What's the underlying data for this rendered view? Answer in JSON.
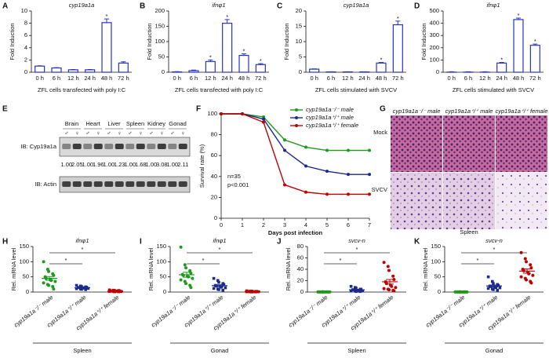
{
  "chart_data": [
    {
      "type": "bar",
      "panel": "A",
      "title": "cyp19a1a",
      "ylabel": "Fold Induction",
      "xlabel": "ZFL cells transfected with poly I:C",
      "color": "#2632c8",
      "categories": [
        "0 h",
        "6 h",
        "12 h",
        "24 h",
        "48 h",
        "72 h"
      ],
      "values": [
        1,
        0.7,
        0.4,
        0.4,
        8.1,
        1.5
      ],
      "errors": [
        0.05,
        0.05,
        0.05,
        0.05,
        0.6,
        0.2
      ],
      "significant": [
        false,
        false,
        false,
        false,
        true,
        false
      ],
      "sig_label": "*",
      "ylim": [
        0,
        10
      ],
      "yticks": [
        0,
        2,
        4,
        6,
        8,
        10
      ]
    },
    {
      "type": "bar",
      "panel": "B",
      "title": "ifnφ1",
      "ylabel": "Fold Induction",
      "xlabel": "ZFL cells transfected with poly I:C",
      "color": "#2632c8",
      "categories": [
        "0 h",
        "6 h",
        "12 h",
        "24 h",
        "48 h",
        "72 h"
      ],
      "values": [
        1,
        5,
        35,
        160,
        55,
        25
      ],
      "errors": [
        1,
        2,
        5,
        12,
        5,
        3
      ],
      "significant": [
        false,
        false,
        true,
        true,
        true,
        true
      ],
      "sig_label": "*",
      "ylim": [
        0,
        200
      ],
      "yticks": [
        0,
        50,
        100,
        150,
        200
      ]
    },
    {
      "type": "bar",
      "panel": "C",
      "title": "cyp19a1a",
      "ylabel": "Fold Induction",
      "xlabel": "ZFL cells stimulated with SVCV",
      "color": "#2632c8",
      "categories": [
        "0 h",
        "6 h",
        "12 h",
        "24 h",
        "48 h",
        "72 h"
      ],
      "values": [
        1,
        0.1,
        0.1,
        0.1,
        3,
        15.5
      ],
      "errors": [
        0.1,
        0.05,
        0.05,
        0.05,
        0.2,
        1.2
      ],
      "significant": [
        false,
        false,
        false,
        false,
        true,
        true
      ],
      "sig_label": "*",
      "ylim": [
        0,
        20
      ],
      "yticks": [
        0,
        5,
        10,
        15,
        20
      ]
    },
    {
      "type": "bar",
      "panel": "D",
      "title": "ifnφ1",
      "ylabel": "Fold Induction",
      "xlabel": "ZFL cells stimulated with SVCV",
      "color": "#2632c8",
      "categories": [
        "0 h",
        "6 h",
        "12 h",
        "24 h",
        "48 h",
        "72 h"
      ],
      "values": [
        1,
        1,
        1,
        75,
        430,
        220
      ],
      "errors": [
        3,
        3,
        3,
        5,
        12,
        10
      ],
      "significant": [
        false,
        false,
        false,
        true,
        true,
        true
      ],
      "sig_label": "*",
      "ylim": [
        0,
        500
      ],
      "yticks": [
        0,
        100,
        200,
        300,
        400,
        500
      ]
    },
    {
      "type": "line",
      "panel": "F",
      "ylabel": "Survival rate (%)",
      "xlabel": "Days post infection",
      "annotations": [
        "n=35",
        "p<0.001"
      ],
      "x": [
        0,
        1,
        2,
        3,
        4,
        5,
        6,
        7
      ],
      "xlim": [
        0,
        7
      ],
      "xticks": [
        0,
        1,
        2,
        3,
        4,
        5,
        6,
        7
      ],
      "ylim": [
        0,
        100
      ],
      "yticks": [
        0,
        20,
        40,
        60,
        80,
        100
      ],
      "series": [
        {
          "name": "cyp19a1a⁻/⁻ male",
          "color": "#1e9a1e",
          "values": [
            100,
            100,
            97,
            75,
            68,
            65,
            65,
            65
          ]
        },
        {
          "name": "cyp19a1a⁺/⁺ male",
          "color": "#1c2a8c",
          "values": [
            100,
            100,
            95,
            65,
            50,
            45,
            42,
            42
          ]
        },
        {
          "name": "cyp19a1a⁺/⁺ female",
          "color": "#c00000",
          "values": [
            100,
            100,
            92,
            32,
            25,
            23,
            23,
            23
          ]
        }
      ]
    },
    {
      "type": "dotplot",
      "panel": "H",
      "title": "ifnφ1",
      "ylabel": "Rel. mRNA level",
      "xlabel": "Spleen",
      "ylim": [
        0,
        150
      ],
      "yticks": [
        0,
        50,
        100,
        150
      ],
      "comparisons": [
        {
          "groups": [
            0,
            1
          ],
          "label": "*"
        },
        {
          "groups": [
            0,
            2
          ],
          "label": "*"
        }
      ],
      "series": [
        {
          "name": "cyp19a1a⁻/⁻ male",
          "color": "#1e9a1e",
          "marker": "circle",
          "values": [
            100,
            75,
            68,
            60,
            55,
            50,
            45,
            40,
            38,
            35,
            30,
            25,
            22,
            18,
            10
          ],
          "mean": 45,
          "sem": 6
        },
        {
          "name": "cyp19a1a⁺/⁺ male",
          "color": "#1c2a8c",
          "marker": "square",
          "values": [
            22,
            20,
            18,
            17,
            16,
            15,
            15,
            14,
            13,
            12,
            11,
            10,
            9,
            8
          ],
          "mean": 14,
          "sem": 1
        },
        {
          "name": "cyp19a1a⁺/⁺ female",
          "color": "#c00000",
          "marker": "square",
          "values": [
            7,
            6,
            5,
            5,
            4,
            4,
            3,
            3,
            3,
            2,
            2,
            2,
            1,
            1
          ],
          "mean": 3,
          "sem": 0.5
        }
      ]
    },
    {
      "type": "dotplot",
      "panel": "I",
      "title": "ifnφ1",
      "ylabel": "Rel. mRNA level",
      "xlabel": "Gonad",
      "ylim": [
        0,
        150
      ],
      "yticks": [
        0,
        50,
        100,
        150
      ],
      "comparisons": [
        {
          "groups": [
            0,
            1
          ],
          "label": "*"
        },
        {
          "groups": [
            0,
            2
          ],
          "label": "*"
        }
      ],
      "series": [
        {
          "name": "cyp19a1a⁻/⁻ male",
          "color": "#1e9a1e",
          "marker": "circle",
          "values": [
            148,
            90,
            80,
            70,
            62,
            58,
            55,
            52,
            50,
            45,
            40,
            35,
            28,
            22,
            15
          ],
          "mean": 57,
          "sem": 8
        },
        {
          "name": "cyp19a1a⁺/⁺ male",
          "color": "#1c2a8c",
          "marker": "square",
          "values": [
            45,
            38,
            32,
            28,
            25,
            22,
            20,
            18,
            16,
            14,
            12,
            10,
            8,
            6
          ],
          "mean": 21,
          "sem": 3
        },
        {
          "name": "cyp19a1a⁺/⁺ female",
          "color": "#c00000",
          "marker": "square",
          "values": [
            4,
            3,
            3,
            2,
            2,
            2,
            1,
            1,
            1,
            1,
            1,
            0.5,
            0.5,
            0.5
          ],
          "mean": 2,
          "sem": 0.3
        }
      ]
    },
    {
      "type": "dotplot",
      "panel": "J",
      "title": "svcv-n",
      "ylabel": "Rel. mRNA level",
      "xlabel": "Spleen",
      "ylim": [
        0,
        80
      ],
      "yticks": [
        0,
        20,
        40,
        60,
        80
      ],
      "comparisons": [
        {
          "groups": [
            0,
            1
          ],
          "label": "*"
        },
        {
          "groups": [
            0,
            2
          ],
          "label": "*"
        }
      ],
      "series": [
        {
          "name": "cyp19a1a⁻/⁻ male",
          "color": "#1e9a1e",
          "marker": "circle",
          "values": [
            0.4,
            0.3,
            0.3,
            0.3,
            0.2,
            0.2,
            0.2,
            0.2,
            0.2,
            0.1,
            0.1,
            0.1,
            0.1,
            0.1
          ],
          "mean": 0.2,
          "sem": 0.05
        },
        {
          "name": "cyp19a1a⁺/⁺ male",
          "color": "#1c2a8c",
          "marker": "square",
          "values": [
            10,
            8,
            7,
            5,
            5,
            4,
            4,
            3,
            3,
            2,
            2,
            2,
            1,
            1
          ],
          "mean": 4,
          "sem": 0.8
        },
        {
          "name": "cyp19a1a⁺/⁺ female",
          "color": "#c00000",
          "marker": "circle",
          "values": [
            52,
            45,
            38,
            28,
            22,
            18,
            15,
            12,
            10,
            8,
            6,
            5,
            4,
            3,
            2
          ],
          "mean": 18,
          "sem": 4
        }
      ]
    },
    {
      "type": "dotplot",
      "panel": "K",
      "title": "svcv-n",
      "ylabel": "Rel. mRNA level",
      "xlabel": "Gonad",
      "ylim": [
        0,
        150
      ],
      "yticks": [
        0,
        50,
        100,
        150
      ],
      "comparisons": [
        {
          "groups": [
            0,
            1
          ],
          "label": "*"
        },
        {
          "groups": [
            0,
            2
          ],
          "label": "*"
        }
      ],
      "series": [
        {
          "name": "cyp19a1a⁻/⁻ male",
          "color": "#1e9a1e",
          "marker": "circle",
          "values": [
            0.8,
            0.6,
            0.5,
            0.5,
            0.4,
            0.4,
            0.3,
            0.3,
            0.3,
            0.2,
            0.2,
            0.2,
            0.1,
            0.1
          ],
          "mean": 0.3,
          "sem": 0.05
        },
        {
          "name": "cyp19a1a⁺/⁺ male",
          "color": "#1c2a8c",
          "marker": "square",
          "values": [
            50,
            35,
            28,
            25,
            22,
            20,
            18,
            16,
            15,
            14,
            12,
            10,
            8,
            6
          ],
          "mean": 20,
          "sem": 3
        },
        {
          "name": "cyp19a1a⁺/⁺ female",
          "color": "#c00000",
          "marker": "circle",
          "values": [
            130,
            110,
            100,
            90,
            80,
            75,
            70,
            65,
            60,
            55,
            50,
            45,
            40,
            35,
            30
          ],
          "mean": 69,
          "sem": 7
        }
      ]
    }
  ],
  "blot": {
    "panel": "E",
    "tissues": [
      "Brain",
      "Heart",
      "Liver",
      "Spleen",
      "Kidney",
      "Gonad"
    ],
    "sexes": [
      "♂",
      "♀"
    ],
    "rows": [
      "IB: Cyp19a1a",
      "IB: Actin"
    ],
    "ratios": [
      "1.00",
      "2.05",
      "1.00",
      "1.96",
      "1.00",
      "1.23",
      "1.00",
      "1.68",
      "1.00",
      "3.08",
      "1.00",
      "2.11"
    ]
  },
  "histology": {
    "panel": "G",
    "columns": [
      "cyp19a1a⁻/⁻ male",
      "cyp19a1a⁺/⁺ male",
      "cyp19a1a⁺/⁺ female"
    ],
    "rows": [
      "Mock",
      "SVCV"
    ],
    "tissue": "Spleen"
  }
}
